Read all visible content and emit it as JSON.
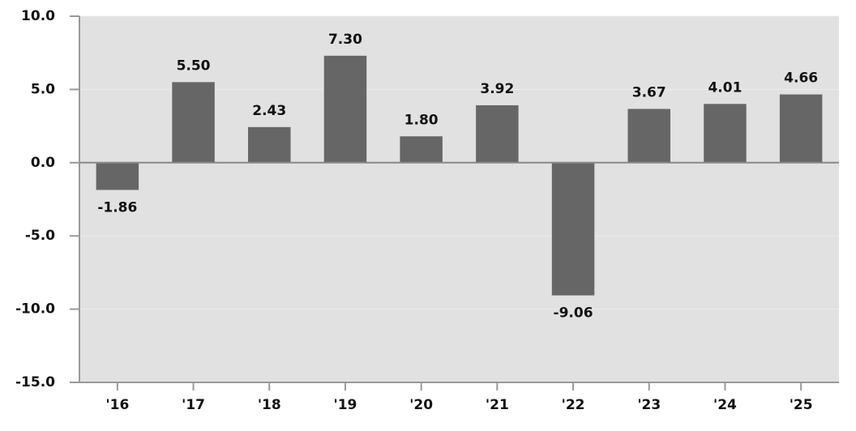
{
  "chart_data": {
    "type": "bar",
    "categories": [
      "'16",
      "'17",
      "'18",
      "'19",
      "'20",
      "'21",
      "'22",
      "'23",
      "'24",
      "'25"
    ],
    "values": [
      -1.86,
      5.5,
      2.43,
      7.3,
      1.8,
      3.92,
      -9.06,
      3.67,
      4.01,
      4.66
    ],
    "value_labels": [
      "-1.86",
      "5.50",
      "2.43",
      "7.30",
      "1.80",
      "3.92",
      "-9.06",
      "3.67",
      "4.01",
      "4.66"
    ],
    "color": "#666666",
    "ylim": [
      -15,
      10
    ],
    "yticks": [
      {
        "value": -15,
        "label": "-15.0"
      },
      {
        "value": -10,
        "label": "-10.0"
      },
      {
        "value": -5,
        "label": "-5.0"
      },
      {
        "value": 0,
        "label": "0.0"
      },
      {
        "value": 5,
        "label": "5.0"
      },
      {
        "value": 10,
        "label": "10.0"
      }
    ],
    "grid": true
  }
}
